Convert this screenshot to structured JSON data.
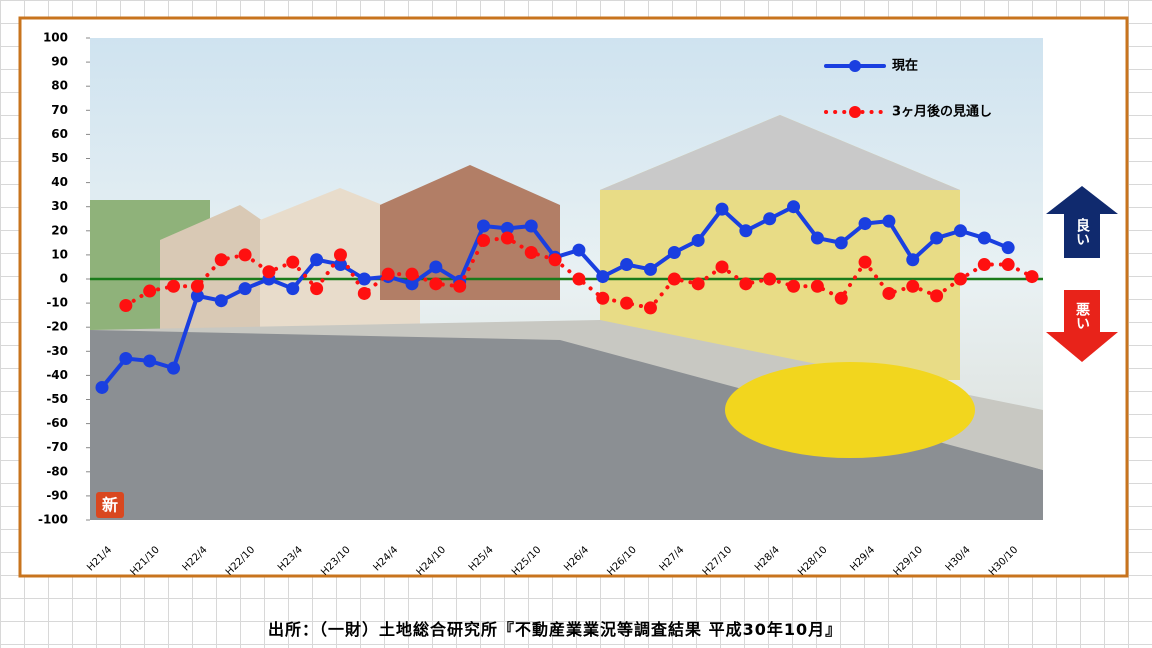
{
  "chart_data": {
    "type": "line",
    "categories": [
      "H21/4",
      null,
      "H21/10",
      null,
      "H22/4",
      null,
      "H22/10",
      null,
      "H23/4",
      null,
      "H23/10",
      null,
      "H24/4",
      null,
      "H24/10",
      null,
      "H25/4",
      null,
      "H25/10",
      null,
      "H26/4",
      null,
      "H26/10",
      null,
      "H27/4",
      null,
      "H27/10",
      null,
      "H28/4",
      null,
      "H28/10",
      null,
      "H29/4",
      null,
      "H29/10",
      null,
      "H30/4",
      null,
      "H30/10",
      null
    ],
    "series": [
      {
        "name": "現在",
        "color": "#1a3fe0",
        "style": "solid",
        "values": [
          -45,
          -33,
          -34,
          -37,
          -7,
          -9,
          -4,
          0,
          -4,
          8,
          6,
          0,
          1,
          -2,
          5,
          -1,
          22,
          21,
          22,
          9,
          12,
          1,
          6,
          4,
          11,
          16,
          29,
          20,
          25,
          30,
          17,
          15,
          23,
          24,
          8,
          17,
          20,
          17,
          13,
          null
        ]
      },
      {
        "name": "3ヶ月後の見通し",
        "color": "#ff1010",
        "style": "dotted",
        "values": [
          null,
          -11,
          -5,
          -3,
          -3,
          8,
          10,
          3,
          7,
          -4,
          10,
          -6,
          2,
          2,
          -2,
          -3,
          16,
          17,
          11,
          8,
          0,
          -8,
          -10,
          -12,
          0,
          -2,
          5,
          -2,
          0,
          -3,
          -3,
          -8,
          7,
          -6,
          -3,
          -7,
          0,
          6,
          6,
          1
        ]
      }
    ],
    "ylim": [
      -100,
      100
    ],
    "yticks": [
      -100,
      -90,
      -80,
      -70,
      -60,
      -50,
      -40,
      -30,
      -20,
      -10,
      0,
      10,
      20,
      30,
      40,
      50,
      60,
      70,
      80,
      90,
      100
    ],
    "reference_line": {
      "value": 0,
      "color": "#1a7a1a"
    },
    "badge": "新",
    "good_label": "良い",
    "bad_label": "悪い"
  },
  "footer": "出所：（一財）土地総合研究所『不動産業業況等調査結果 平成30年10月』"
}
